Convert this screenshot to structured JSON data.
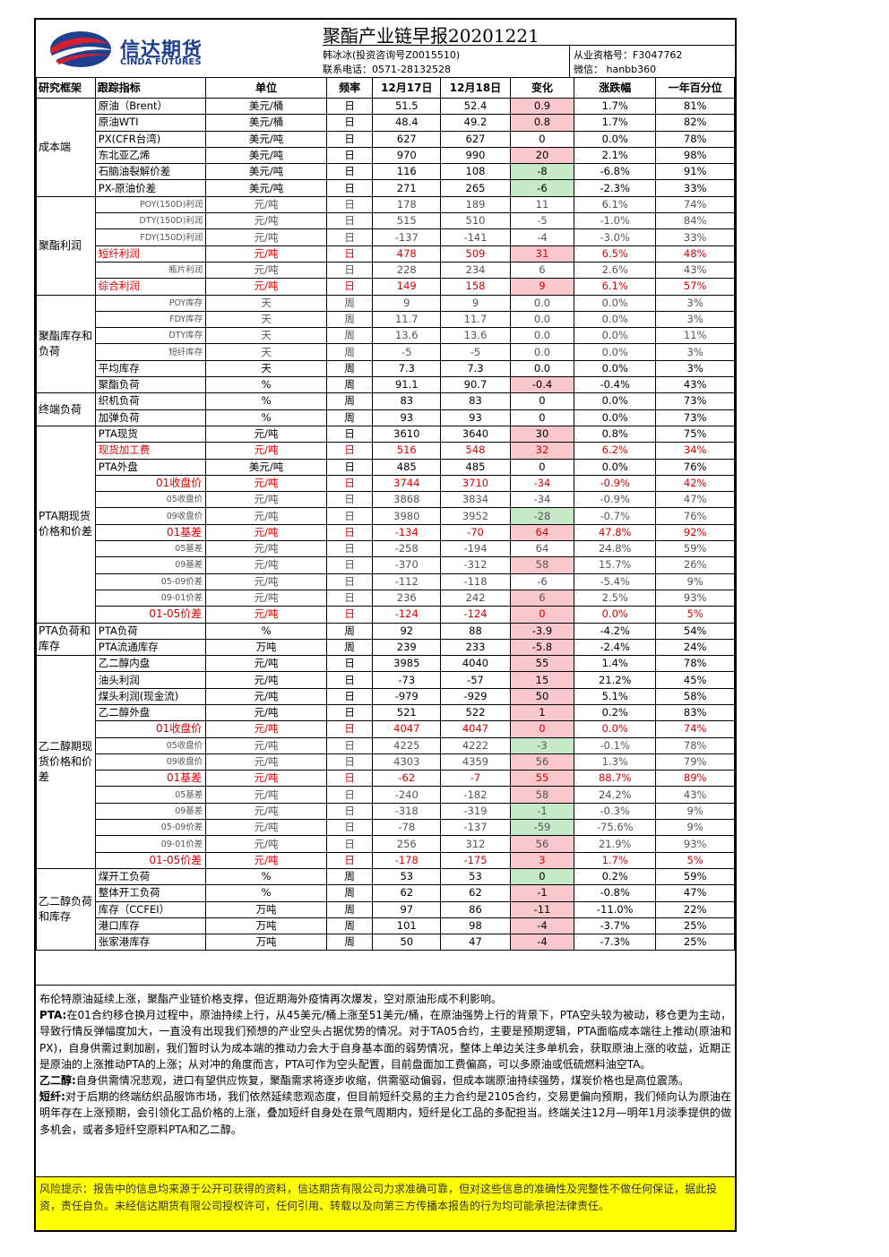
{
  "header": {
    "logo_cn": "信达期货",
    "logo_en": "CINDA FUTURES",
    "title": "聚酯产业链早报20201221",
    "analyst": "韩冰冰(投资咨询号Z0015510)",
    "phone": "联系电话：0571-28132528",
    "qualification": "从业资格号：F3047762",
    "wechat": "微信： hanbb360"
  },
  "columns": [
    "研究框架",
    "跟踪指标",
    "单位",
    "频率",
    "12月17日",
    "12月18日",
    "变化",
    "涨跌幅",
    "一年百分位"
  ],
  "groups": [
    {
      "name": "成本端",
      "rows": [
        {
          "ind": "原油（Brent）",
          "unit": "美元/桶",
          "freq": "日",
          "d1": "51.5",
          "d2": "52.4",
          "chg": "0.9",
          "pct": "1.7%",
          "pctl": "81%",
          "hl": "pos"
        },
        {
          "ind": "原油WTI",
          "unit": "美元/桶",
          "freq": "日",
          "d1": "48.4",
          "d2": "49.2",
          "chg": "0.8",
          "pct": "1.7%",
          "pctl": "82%",
          "hl": "pos"
        },
        {
          "ind": "PX(CFR台湾)",
          "unit": "美元/吨",
          "freq": "日",
          "d1": "627",
          "d2": "627",
          "chg": "0",
          "pct": "0.0%",
          "pctl": "78%"
        },
        {
          "ind": "东北亚乙烯",
          "unit": "美元/吨",
          "freq": "日",
          "d1": "970",
          "d2": "990",
          "chg": "20",
          "pct": "2.1%",
          "pctl": "98%",
          "hl": "pos"
        },
        {
          "ind": "石脑油裂解价差",
          "unit": "美元/吨",
          "freq": "日",
          "d1": "116",
          "d2": "108",
          "chg": "-8",
          "pct": "-6.8%",
          "pctl": "91%",
          "hl": "neg"
        },
        {
          "ind": "PX-原油价差",
          "unit": "美元/吨",
          "freq": "日",
          "d1": "271",
          "d2": "265",
          "chg": "-6",
          "pct": "-2.3%",
          "pctl": "33%",
          "hl": "neg"
        }
      ]
    },
    {
      "name": "聚酯利润",
      "rows": [
        {
          "ind": "POY(150D)利润",
          "unit": "元/吨",
          "freq": "日",
          "d1": "178",
          "d2": "189",
          "chg": "11",
          "pct": "6.1%",
          "pctl": "74%",
          "small": true
        },
        {
          "ind": "DTY(150D)利润",
          "unit": "元/吨",
          "freq": "日",
          "d1": "515",
          "d2": "510",
          "chg": "-5",
          "pct": "-1.0%",
          "pctl": "84%",
          "small": true
        },
        {
          "ind": "FDY(150D)利润",
          "unit": "元/吨",
          "freq": "日",
          "d1": "-137",
          "d2": "-141",
          "chg": "-4",
          "pct": "-3.0%",
          "pctl": "33%",
          "small": true
        },
        {
          "ind": "短纤利润",
          "unit": "元/吨",
          "freq": "日",
          "d1": "478",
          "d2": "509",
          "chg": "31",
          "pct": "6.5%",
          "pctl": "48%",
          "red": true,
          "hl": "pos"
        },
        {
          "ind": "瓶片利润",
          "unit": "元/吨",
          "freq": "日",
          "d1": "228",
          "d2": "234",
          "chg": "6",
          "pct": "2.6%",
          "pctl": "43%",
          "small": true
        },
        {
          "ind": "综合利润",
          "unit": "元/吨",
          "freq": "日",
          "d1": "149",
          "d2": "158",
          "chg": "9",
          "pct": "6.1%",
          "pctl": "57%",
          "red": true,
          "hl": "pos"
        }
      ]
    },
    {
      "name": "聚酯库存和负荷",
      "rows": [
        {
          "ind": "POY库存",
          "unit": "天",
          "freq": "周",
          "d1": "9",
          "d2": "9",
          "chg": "0.0",
          "pct": "0.0%",
          "pctl": "3%",
          "small": true
        },
        {
          "ind": "FDY库存",
          "unit": "天",
          "freq": "周",
          "d1": "11.7",
          "d2": "11.7",
          "chg": "0.0",
          "pct": "0.0%",
          "pctl": "3%",
          "small": true
        },
        {
          "ind": "DTY库存",
          "unit": "天",
          "freq": "周",
          "d1": "13.6",
          "d2": "13.6",
          "chg": "0.0",
          "pct": "0.0%",
          "pctl": "11%",
          "small": true
        },
        {
          "ind": "短纤库存",
          "unit": "天",
          "freq": "周",
          "d1": "-5",
          "d2": "-5",
          "chg": "0.0",
          "pct": "0.0%",
          "pctl": "3%",
          "small": true
        },
        {
          "ind": "平均库存",
          "unit": "天",
          "freq": "周",
          "d1": "7.3",
          "d2": "7.3",
          "chg": "0.0",
          "pct": "0.0%",
          "pctl": "3%"
        },
        {
          "ind": "聚酯负荷",
          "unit": "%",
          "freq": "周",
          "d1": "91.1",
          "d2": "90.7",
          "chg": "-0.4",
          "pct": "-0.4%",
          "pctl": "43%",
          "hl": "pos"
        }
      ]
    },
    {
      "name": "终端负荷",
      "rows": [
        {
          "ind": "织机负荷",
          "unit": "%",
          "freq": "周",
          "d1": "83",
          "d2": "83",
          "chg": "0",
          "pct": "0.0%",
          "pctl": "73%"
        },
        {
          "ind": "加弹负荷",
          "unit": "%",
          "freq": "周",
          "d1": "93",
          "d2": "93",
          "chg": "0",
          "pct": "0.0%",
          "pctl": "73%"
        }
      ]
    },
    {
      "name": "PTA期现货价格和价差",
      "rows": [
        {
          "ind": "PTA现货",
          "unit": "元/吨",
          "freq": "日",
          "d1": "3610",
          "d2": "3640",
          "chg": "30",
          "pct": "0.8%",
          "pctl": "75%",
          "hl": "pos"
        },
        {
          "ind": "现货加工费",
          "unit": "元/吨",
          "freq": "日",
          "d1": "516",
          "d2": "548",
          "chg": "32",
          "pct": "6.2%",
          "pctl": "34%",
          "red": true,
          "hl": "pos"
        },
        {
          "ind": "PTA外盘",
          "unit": "美元/吨",
          "freq": "日",
          "d1": "485",
          "d2": "485",
          "chg": "0",
          "pct": "0.0%",
          "pctl": "76%"
        },
        {
          "ind": "01收盘价",
          "unit": "元/吨",
          "freq": "日",
          "d1": "3744",
          "d2": "3710",
          "chg": "-34",
          "pct": "-0.9%",
          "pctl": "42%",
          "red": true,
          "right": true
        },
        {
          "ind": "05收盘价",
          "unit": "元/吨",
          "freq": "日",
          "d1": "3868",
          "d2": "3834",
          "chg": "-34",
          "pct": "-0.9%",
          "pctl": "47%",
          "small": true
        },
        {
          "ind": "09收盘价",
          "unit": "元/吨",
          "freq": "日",
          "d1": "3980",
          "d2": "3952",
          "chg": "-28",
          "pct": "-0.7%",
          "pctl": "76%",
          "small": true,
          "hl": "neg"
        },
        {
          "ind": "01基差",
          "unit": "元/吨",
          "freq": "日",
          "d1": "-134",
          "d2": "-70",
          "chg": "64",
          "pct": "47.8%",
          "pctl": "92%",
          "red": true,
          "right": true,
          "hl": "pos"
        },
        {
          "ind": "05基差",
          "unit": "元/吨",
          "freq": "日",
          "d1": "-258",
          "d2": "-194",
          "chg": "64",
          "pct": "24.8%",
          "pctl": "59%",
          "small": true
        },
        {
          "ind": "09基差",
          "unit": "元/吨",
          "freq": "日",
          "d1": "-370",
          "d2": "-312",
          "chg": "58",
          "pct": "15.7%",
          "pctl": "26%",
          "small": true,
          "hl": "pos"
        },
        {
          "ind": "05-09价差",
          "unit": "元/吨",
          "freq": "日",
          "d1": "-112",
          "d2": "-118",
          "chg": "-6",
          "pct": "-5.4%",
          "pctl": "9%",
          "small": true
        },
        {
          "ind": "09-01价差",
          "unit": "元/吨",
          "freq": "日",
          "d1": "236",
          "d2": "242",
          "chg": "6",
          "pct": "2.5%",
          "pctl": "93%",
          "small": true,
          "hl": "pos"
        },
        {
          "ind": "01-05价差",
          "unit": "元/吨",
          "freq": "日",
          "d1": "-124",
          "d2": "-124",
          "chg": "0",
          "pct": "0.0%",
          "pctl": "5%",
          "red": true,
          "right": true,
          "hl": "pos"
        }
      ]
    },
    {
      "name": "PTA负荷和库存",
      "rows": [
        {
          "ind": "PTA负荷",
          "unit": "%",
          "freq": "周",
          "d1": "92",
          "d2": "88",
          "chg": "-3.9",
          "pct": "-4.2%",
          "pctl": "54%",
          "hl": "pos"
        },
        {
          "ind": "PTA流通库存",
          "unit": "万吨",
          "freq": "周",
          "d1": "239",
          "d2": "233",
          "chg": "-5.8",
          "pct": "-2.4%",
          "pctl": "24%",
          "hl": "pos"
        }
      ]
    },
    {
      "name": "乙二醇期现货价格和价差",
      "rows": [
        {
          "ind": "乙二醇内盘",
          "unit": "元/吨",
          "freq": "日",
          "d1": "3985",
          "d2": "4040",
          "chg": "55",
          "pct": "1.4%",
          "pctl": "78%",
          "hl": "pos"
        },
        {
          "ind": "油头利润",
          "unit": "元/吨",
          "freq": "日",
          "d1": "-73",
          "d2": "-57",
          "chg": "15",
          "pct": "21.2%",
          "pctl": "45%",
          "hl": "pos"
        },
        {
          "ind": "煤头利润(现金流)",
          "unit": "元/吨",
          "freq": "日",
          "d1": "-979",
          "d2": "-929",
          "chg": "50",
          "pct": "5.1%",
          "pctl": "58%",
          "hl": "pos"
        },
        {
          "ind": "乙二醇外盘",
          "unit": "元/吨",
          "freq": "日",
          "d1": "521",
          "d2": "522",
          "chg": "1",
          "pct": "0.2%",
          "pctl": "83%",
          "hl": "pos"
        },
        {
          "ind": "01收盘价",
          "unit": "元/吨",
          "freq": "日",
          "d1": "4047",
          "d2": "4047",
          "chg": "0",
          "pct": "0.0%",
          "pctl": "74%",
          "red": true,
          "right": true,
          "hl": "pos"
        },
        {
          "ind": "05收盘价",
          "unit": "元/吨",
          "freq": "日",
          "d1": "4225",
          "d2": "4222",
          "chg": "-3",
          "pct": "-0.1%",
          "pctl": "78%",
          "small": true,
          "hl": "neg"
        },
        {
          "ind": "09收盘价",
          "unit": "元/吨",
          "freq": "日",
          "d1": "4303",
          "d2": "4359",
          "chg": "56",
          "pct": "1.3%",
          "pctl": "79%",
          "small": true,
          "hl": "pos"
        },
        {
          "ind": "01基差",
          "unit": "元/吨",
          "freq": "日",
          "d1": "-62",
          "d2": "-7",
          "chg": "55",
          "pct": "88.7%",
          "pctl": "89%",
          "red": true,
          "right": true,
          "hl": "pos"
        },
        {
          "ind": "05基差",
          "unit": "元/吨",
          "freq": "日",
          "d1": "-240",
          "d2": "-182",
          "chg": "58",
          "pct": "24.2%",
          "pctl": "43%",
          "small": true,
          "hl": "pos"
        },
        {
          "ind": "09基差",
          "unit": "元/吨",
          "freq": "日",
          "d1": "-318",
          "d2": "-319",
          "chg": "-1",
          "pct": "-0.3%",
          "pctl": "9%",
          "small": true,
          "hl": "neg"
        },
        {
          "ind": "05-09价差",
          "unit": "元/吨",
          "freq": "日",
          "d1": "-78",
          "d2": "-137",
          "chg": "-59",
          "pct": "-75.6%",
          "pctl": "9%",
          "small": true,
          "hl": "neg"
        },
        {
          "ind": "09-01价差",
          "unit": "元/吨",
          "freq": "日",
          "d1": "256",
          "d2": "312",
          "chg": "56",
          "pct": "21.9%",
          "pctl": "93%",
          "small": true,
          "hl": "pos"
        },
        {
          "ind": "01-05价差",
          "unit": "元/吨",
          "freq": "日",
          "d1": "-178",
          "d2": "-175",
          "chg": "3",
          "pct": "1.7%",
          "pctl": "5%",
          "red": true,
          "right": true,
          "hl": "pos"
        }
      ]
    },
    {
      "name": "乙二醇负荷和库存",
      "rows": [
        {
          "ind": "煤开工负荷",
          "unit": "%",
          "freq": "周",
          "d1": "53",
          "d2": "53",
          "chg": "0",
          "pct": "0.2%",
          "pctl": "59%",
          "hl": "neg"
        },
        {
          "ind": "整体开工负荷",
          "unit": "%",
          "freq": "周",
          "d1": "62",
          "d2": "62",
          "chg": "-1",
          "pct": "-0.8%",
          "pctl": "47%",
          "hl": "pos"
        },
        {
          "ind": "库存（CCFEI）",
          "unit": "万吨",
          "freq": "周",
          "d1": "97",
          "d2": "86",
          "chg": "-11",
          "pct": "-11.0%",
          "pctl": "22%",
          "hl": "pos"
        },
        {
          "ind": "港口库存",
          "unit": "万吨",
          "freq": "周",
          "d1": "101",
          "d2": "98",
          "chg": "-4",
          "pct": "-3.7%",
          "pctl": "25%",
          "hl": "pos"
        },
        {
          "ind": "张家港库存",
          "unit": "万吨",
          "freq": "周",
          "d1": "50",
          "d2": "47",
          "chg": "-4",
          "pct": "-7.3%",
          "pctl": "25%",
          "hl": "pos"
        }
      ]
    }
  ],
  "commentary": {
    "intro": "布伦特原油延续上涨，聚酯产业链价格支撑，但近期海外疫情再次爆发，空对原油形成不利影响。",
    "pta_label": "PTA:",
    "pta_text": "在01合约移仓换月过程中，原油持续上行，从45美元/桶上涨至51美元/桶，在原油强势上行的背景下，PTA空头较为被动，移仓更为主动，导致行情反弹幅度加大，一直没有出现我们预想的产业空头占据优势的情况。对于TA05合约，主要是预期逻辑，PTA面临成本端往上推动(原油和PX)，自身供需过剩加剧，我们暂时认为成本端的推动力会大于自身基本面的弱势情况，整体上单边关注多单机会，获取原油上涨的收益，近期正是原油的上涨推动PTA的上涨；从对冲的角度而言，PTA可作为空头配置，目前盘面加工费偏高，可以多原油或低硫燃料油空TA。",
    "meg_label": "乙二醇:",
    "meg_text": "自身供需情况悲观，进口有望供应恢复，聚酯需求将逐步收缩，供需驱动偏弱，但成本端原油持续强势，煤炭价格也是高位震荡。",
    "psf_label": "短纤:",
    "psf_text": "对于后期的终端纺织品服饰市场，我们依然延续悲观态度，但目前短纤交易的主力合约是2105合约，交易更偏向预期，我们倾向认为原油在明年存在上涨预期，会引领化工品价格的上涨，叠加短纤自身处在景气周期内，短纤是化工品的多配担当。终端关注12月—明年1月淡季提供的做多机会，或者多短纤空原料PTA和乙二醇。"
  },
  "risk": "风险提示：报告中的信息均来源于公开可获得的资料，信达期货有限公司力求准确可靠，但对这些信息的准确性及完整性不做任何保证，据此投资，责任自负。未经信达期货有限公司授权许可，任何引用、转载以及向第三方传播本报告的行为均可能承担法律责任。",
  "colors": {
    "positive": "#f8c8cc",
    "negative": "#c6eac8",
    "risk_bg": "#ffff00",
    "brand": "#1f3f8f",
    "logo_red": "#d42030"
  }
}
